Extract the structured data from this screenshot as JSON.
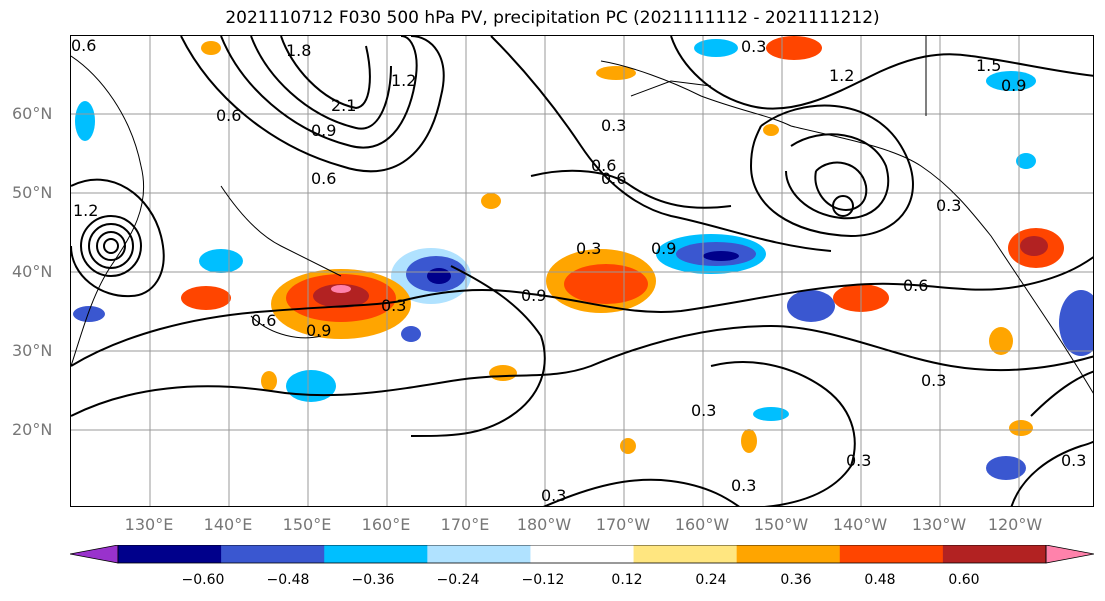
{
  "title": "2021110712 F030 500 hPa PV, precipitation PC (2021111112 - 2021111212)",
  "lat_labels": [
    "60°N",
    "50°N",
    "40°N",
    "30°N",
    "20°N"
  ],
  "lon_labels": [
    "130°E",
    "140°E",
    "150°E",
    "160°E",
    "170°E",
    "180°W",
    "170°W",
    "160°W",
    "150°W",
    "140°W",
    "130°W",
    "120°W"
  ],
  "colorbar": {
    "ticks": [
      "−0.60",
      "−0.48",
      "−0.36",
      "−0.24",
      "−0.12",
      "0.12",
      "0.24",
      "0.36",
      "0.48",
      "0.60"
    ],
    "colors": [
      "#9932cc",
      "#00008b",
      "#3a57d0",
      "#00bfff",
      "#b0e2ff",
      "#ffffff",
      "#ffe680",
      "#ffa500",
      "#ff4500",
      "#b22222",
      "#ff82ab"
    ]
  },
  "contour_labels": [
    {
      "text": "0.3"
    },
    {
      "text": "1.2"
    },
    {
      "text": "1.5"
    },
    {
      "text": "0.9"
    },
    {
      "text": "0.3"
    },
    {
      "text": "0.6"
    },
    {
      "text": "0.9"
    },
    {
      "text": "0.6"
    },
    {
      "text": "0.3"
    },
    {
      "text": "0.6"
    },
    {
      "text": "0.9"
    },
    {
      "text": "0.3"
    },
    {
      "text": "0.9"
    },
    {
      "text": "0.3"
    },
    {
      "text": "0.6"
    },
    {
      "text": "0.3"
    },
    {
      "text": "0.3"
    },
    {
      "text": "0.3"
    },
    {
      "text": "0.3"
    },
    {
      "text": "0.3"
    },
    {
      "text": "0.3"
    },
    {
      "text": "0.6"
    },
    {
      "text": "1.2"
    },
    {
      "text": "0.9"
    },
    {
      "text": "2.1"
    },
    {
      "text": "1.2"
    },
    {
      "text": "0.6"
    },
    {
      "text": "1.8"
    },
    {
      "text": "0.6"
    }
  ]
}
